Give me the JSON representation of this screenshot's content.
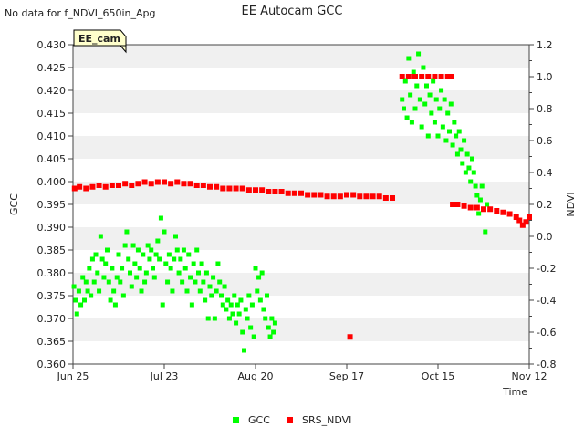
{
  "page_note": "No data for f_NDVI_650in_Apg",
  "chart_data": {
    "type": "scatter",
    "title": "EE Autocam GCC",
    "xlabel": "Time",
    "ylabel_left": "GCC",
    "ylabel_right": "NDVI",
    "site_label": "EE_cam",
    "x_ticks": [
      "Jun 25",
      "Jul 23",
      "Aug 20",
      "Sep 17",
      "Oct 15",
      "Nov 12"
    ],
    "x_tick_days": [
      0,
      28,
      56,
      84,
      112,
      140
    ],
    "xlim_days": [
      0,
      140
    ],
    "ylim_left": [
      0.36,
      0.43
    ],
    "ylim_right": [
      -0.8,
      1.2
    ],
    "y_ticks_left": [
      "0.360",
      "0.365",
      "0.370",
      "0.375",
      "0.380",
      "0.385",
      "0.390",
      "0.395",
      "0.400",
      "0.405",
      "0.410",
      "0.415",
      "0.420",
      "0.425",
      "0.430"
    ],
    "y_ticks_right": [
      "-0.8",
      "-0.6",
      "-0.4",
      "-0.2",
      "0.0",
      "0.2",
      "0.4",
      "0.6",
      "0.8",
      "1.0",
      "1.2"
    ],
    "grid_bands": true,
    "legend_placement": "bottom-center",
    "series": [
      {
        "name": "GCC",
        "color": "#00ff00",
        "axis": "left",
        "points": [
          [
            0.3,
            0.377
          ],
          [
            0.8,
            0.374
          ],
          [
            1.2,
            0.371
          ],
          [
            1.8,
            0.376
          ],
          [
            2.4,
            0.373
          ],
          [
            3.0,
            0.379
          ],
          [
            3.5,
            0.374
          ],
          [
            4.0,
            0.378
          ],
          [
            4.5,
            0.376
          ],
          [
            5.0,
            0.381
          ],
          [
            5.5,
            0.375
          ],
          [
            6.0,
            0.383
          ],
          [
            6.5,
            0.378
          ],
          [
            7.0,
            0.384
          ],
          [
            7.5,
            0.38
          ],
          [
            8.0,
            0.376
          ],
          [
            8.5,
            0.388
          ],
          [
            9.0,
            0.383
          ],
          [
            9.5,
            0.379
          ],
          [
            10.0,
            0.382
          ],
          [
            10.5,
            0.385
          ],
          [
            11.0,
            0.378
          ],
          [
            11.5,
            0.374
          ],
          [
            12.0,
            0.381
          ],
          [
            12.5,
            0.376
          ],
          [
            13.0,
            0.373
          ],
          [
            13.5,
            0.379
          ],
          [
            14.0,
            0.384
          ],
          [
            14.5,
            0.378
          ],
          [
            15.0,
            0.381
          ],
          [
            15.5,
            0.375
          ],
          [
            16.0,
            0.386
          ],
          [
            16.5,
            0.389
          ],
          [
            17.0,
            0.383
          ],
          [
            17.5,
            0.38
          ],
          [
            18.0,
            0.377
          ],
          [
            18.5,
            0.386
          ],
          [
            19.0,
            0.382
          ],
          [
            19.5,
            0.379
          ],
          [
            20.0,
            0.385
          ],
          [
            20.5,
            0.381
          ],
          [
            21.0,
            0.376
          ],
          [
            21.5,
            0.384
          ],
          [
            22.0,
            0.378
          ],
          [
            22.5,
            0.38
          ],
          [
            23.0,
            0.386
          ],
          [
            23.5,
            0.383
          ],
          [
            24.0,
            0.385
          ],
          [
            24.5,
            0.381
          ],
          [
            25.0,
            0.379
          ],
          [
            25.5,
            0.384
          ],
          [
            26.0,
            0.387
          ],
          [
            26.5,
            0.383
          ],
          [
            27.0,
            0.392
          ],
          [
            27.5,
            0.373
          ],
          [
            28.0,
            0.389
          ],
          [
            28.5,
            0.382
          ],
          [
            29.0,
            0.378
          ],
          [
            29.5,
            0.384
          ],
          [
            30.0,
            0.381
          ],
          [
            30.5,
            0.376
          ],
          [
            31.0,
            0.383
          ],
          [
            31.5,
            0.388
          ],
          [
            32.0,
            0.385
          ],
          [
            32.5,
            0.38
          ],
          [
            33.0,
            0.383
          ],
          [
            33.5,
            0.378
          ],
          [
            34.0,
            0.385
          ],
          [
            34.5,
            0.381
          ],
          [
            35.0,
            0.376
          ],
          [
            35.5,
            0.384
          ],
          [
            36.0,
            0.379
          ],
          [
            36.5,
            0.373
          ],
          [
            37.0,
            0.382
          ],
          [
            37.5,
            0.378
          ],
          [
            38.0,
            0.385
          ],
          [
            38.5,
            0.38
          ],
          [
            39.0,
            0.376
          ],
          [
            39.5,
            0.382
          ],
          [
            40.0,
            0.378
          ],
          [
            40.5,
            0.374
          ],
          [
            41.0,
            0.38
          ],
          [
            41.5,
            0.37
          ],
          [
            42.0,
            0.377
          ],
          [
            42.5,
            0.375
          ],
          [
            43.0,
            0.379
          ],
          [
            43.5,
            0.37
          ],
          [
            44.0,
            0.376
          ],
          [
            44.5,
            0.382
          ],
          [
            45.0,
            0.378
          ],
          [
            45.5,
            0.375
          ],
          [
            46.0,
            0.373
          ],
          [
            46.5,
            0.377
          ],
          [
            47.0,
            0.372
          ],
          [
            47.5,
            0.374
          ],
          [
            48.0,
            0.37
          ],
          [
            48.5,
            0.373
          ],
          [
            49.0,
            0.371
          ],
          [
            49.5,
            0.375
          ],
          [
            50.0,
            0.369
          ],
          [
            50.5,
            0.373
          ],
          [
            51.0,
            0.371
          ],
          [
            51.5,
            0.374
          ],
          [
            52.0,
            0.367
          ],
          [
            52.5,
            0.363
          ],
          [
            53.0,
            0.372
          ],
          [
            53.5,
            0.37
          ],
          [
            54.0,
            0.375
          ],
          [
            54.5,
            0.368
          ],
          [
            55.0,
            0.373
          ],
          [
            55.5,
            0.366
          ],
          [
            56.0,
            0.381
          ],
          [
            56.5,
            0.376
          ],
          [
            57.0,
            0.379
          ],
          [
            57.5,
            0.374
          ],
          [
            58.0,
            0.38
          ],
          [
            58.5,
            0.372
          ],
          [
            59.0,
            0.37
          ],
          [
            59.5,
            0.375
          ],
          [
            60.0,
            0.368
          ],
          [
            60.5,
            0.366
          ],
          [
            61.0,
            0.37
          ],
          [
            61.5,
            0.367
          ],
          [
            62.0,
            0.369
          ],
          [
            101.0,
            0.418
          ],
          [
            101.5,
            0.416
          ],
          [
            102.0,
            0.422
          ],
          [
            102.5,
            0.414
          ],
          [
            103.0,
            0.427
          ],
          [
            103.5,
            0.419
          ],
          [
            104.0,
            0.413
          ],
          [
            104.5,
            0.424
          ],
          [
            105.0,
            0.416
          ],
          [
            105.5,
            0.421
          ],
          [
            106.0,
            0.428
          ],
          [
            106.5,
            0.418
          ],
          [
            107.0,
            0.412
          ],
          [
            107.5,
            0.425
          ],
          [
            108.0,
            0.417
          ],
          [
            108.5,
            0.421
          ],
          [
            109.0,
            0.41
          ],
          [
            109.5,
            0.419
          ],
          [
            110.0,
            0.415
          ],
          [
            110.5,
            0.422
          ],
          [
            111.0,
            0.413
          ],
          [
            111.5,
            0.418
          ],
          [
            112.0,
            0.41
          ],
          [
            112.5,
            0.416
          ],
          [
            113.0,
            0.42
          ],
          [
            113.5,
            0.412
          ],
          [
            114.0,
            0.418
          ],
          [
            114.5,
            0.409
          ],
          [
            115.0,
            0.415
          ],
          [
            115.5,
            0.411
          ],
          [
            116.0,
            0.417
          ],
          [
            116.5,
            0.408
          ],
          [
            117.0,
            0.413
          ],
          [
            117.5,
            0.41
          ],
          [
            118.0,
            0.406
          ],
          [
            118.5,
            0.411
          ],
          [
            119.0,
            0.407
          ],
          [
            119.5,
            0.404
          ],
          [
            120.0,
            0.409
          ],
          [
            120.5,
            0.402
          ],
          [
            121.0,
            0.406
          ],
          [
            121.5,
            0.403
          ],
          [
            122.0,
            0.4
          ],
          [
            122.5,
            0.405
          ],
          [
            123.0,
            0.402
          ],
          [
            123.5,
            0.399
          ],
          [
            124.0,
            0.397
          ],
          [
            124.5,
            0.393
          ],
          [
            125.0,
            0.396
          ],
          [
            125.5,
            0.399
          ],
          [
            126.0,
            0.394
          ],
          [
            126.5,
            0.389
          ],
          [
            127.0,
            0.395
          ]
        ]
      },
      {
        "name": "SRS_NDVI",
        "color": "#ff0000",
        "axis": "right",
        "points": [
          [
            0.5,
            0.3
          ],
          [
            2,
            0.31
          ],
          [
            4,
            0.3
          ],
          [
            6,
            0.31
          ],
          [
            8,
            0.32
          ],
          [
            10,
            0.31
          ],
          [
            12,
            0.32
          ],
          [
            14,
            0.32
          ],
          [
            16,
            0.33
          ],
          [
            18,
            0.32
          ],
          [
            20,
            0.33
          ],
          [
            22,
            0.34
          ],
          [
            24,
            0.33
          ],
          [
            26,
            0.34
          ],
          [
            28,
            0.34
          ],
          [
            30,
            0.33
          ],
          [
            32,
            0.34
          ],
          [
            34,
            0.33
          ],
          [
            36,
            0.33
          ],
          [
            38,
            0.32
          ],
          [
            40,
            0.32
          ],
          [
            42,
            0.31
          ],
          [
            44,
            0.31
          ],
          [
            46,
            0.3
          ],
          [
            48,
            0.3
          ],
          [
            50,
            0.3
          ],
          [
            52,
            0.3
          ],
          [
            54,
            0.29
          ],
          [
            56,
            0.29
          ],
          [
            58,
            0.29
          ],
          [
            60,
            0.28
          ],
          [
            62,
            0.28
          ],
          [
            64,
            0.28
          ],
          [
            66,
            0.27
          ],
          [
            68,
            0.27
          ],
          [
            70,
            0.27
          ],
          [
            72,
            0.26
          ],
          [
            74,
            0.26
          ],
          [
            76,
            0.26
          ],
          [
            78,
            0.25
          ],
          [
            80,
            0.25
          ],
          [
            82,
            0.25
          ],
          [
            84,
            0.26
          ],
          [
            86,
            0.26
          ],
          [
            88,
            0.25
          ],
          [
            90,
            0.25
          ],
          [
            92,
            0.25
          ],
          [
            94,
            0.25
          ],
          [
            96,
            0.24
          ],
          [
            98,
            0.24
          ],
          [
            85,
            -0.63
          ],
          [
            101,
            1.0
          ],
          [
            103,
            1.0
          ],
          [
            105,
            1.0
          ],
          [
            107,
            1.0
          ],
          [
            109,
            1.0
          ],
          [
            111,
            1.0
          ],
          [
            113,
            1.0
          ],
          [
            115,
            1.0
          ],
          [
            116,
            1.0
          ],
          [
            116.5,
            0.2
          ],
          [
            118,
            0.2
          ],
          [
            120,
            0.19
          ],
          [
            122,
            0.18
          ],
          [
            124,
            0.18
          ],
          [
            126,
            0.17
          ],
          [
            128,
            0.17
          ],
          [
            130,
            0.16
          ],
          [
            132,
            0.15
          ],
          [
            134,
            0.14
          ],
          [
            136,
            0.12
          ],
          [
            137,
            0.1
          ],
          [
            138,
            0.07
          ],
          [
            139,
            0.09
          ],
          [
            140,
            0.12
          ]
        ]
      }
    ]
  }
}
